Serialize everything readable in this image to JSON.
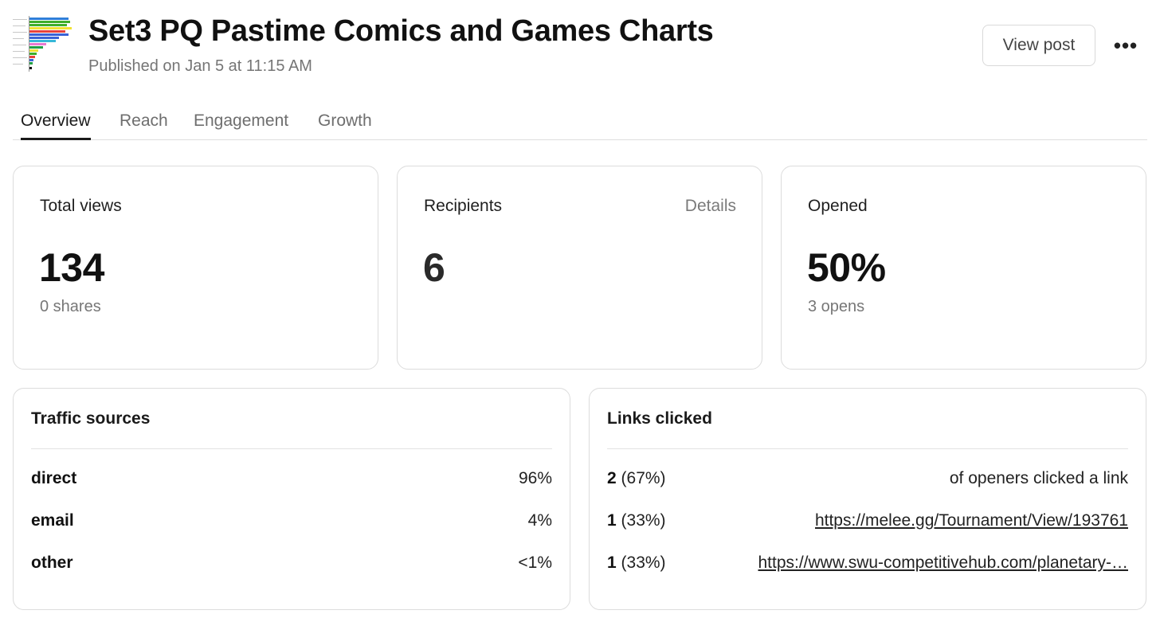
{
  "header": {
    "title": "Set3 PQ Pastime Comics and Games Charts",
    "published": "Published on Jan 5 at 11:15 AM",
    "view_post_label": "View post",
    "more_label": "•••"
  },
  "tabs": [
    {
      "label": "Overview",
      "active": true
    },
    {
      "label": "Reach",
      "active": false
    },
    {
      "label": "Engagement",
      "active": false
    },
    {
      "label": "Growth",
      "active": false
    }
  ],
  "stats": {
    "total_views": {
      "label": "Total views",
      "value": "134",
      "sub": "0 shares"
    },
    "recipients": {
      "label": "Recipients",
      "value": "6",
      "details_label": "Details"
    },
    "opened": {
      "label": "Opened",
      "value": "50%",
      "sub": "3 opens"
    }
  },
  "traffic_sources": {
    "title": "Traffic sources",
    "rows": [
      {
        "source": "direct",
        "share": "96%"
      },
      {
        "source": "email",
        "share": "4%"
      },
      {
        "source": "other",
        "share": "<1%"
      }
    ]
  },
  "links_clicked": {
    "title": "Links clicked",
    "rows": [
      {
        "count": "2",
        "pct": "(67%)",
        "text": "of openers clicked a link",
        "is_link": false
      },
      {
        "count": "1",
        "pct": "(33%)",
        "text": "https://melee.gg/Tournament/View/193761",
        "is_link": true
      },
      {
        "count": "1",
        "pct": "(33%)",
        "text": "https://www.swu-competitivehub.com/planetary-…",
        "is_link": true
      }
    ]
  },
  "colors": {
    "border": "#dcdcdc",
    "muted_text": "#757575",
    "thumbnail_bars": [
      "#3fae2a",
      "#f2e233",
      "#e8433a",
      "#3a63d6",
      "#36b8d8",
      "#e87ad0",
      "#22a045",
      "#111111"
    ]
  },
  "icons": {
    "thumbnail": "bar-chart-thumbnail",
    "more": "more-horizontal-icon"
  }
}
